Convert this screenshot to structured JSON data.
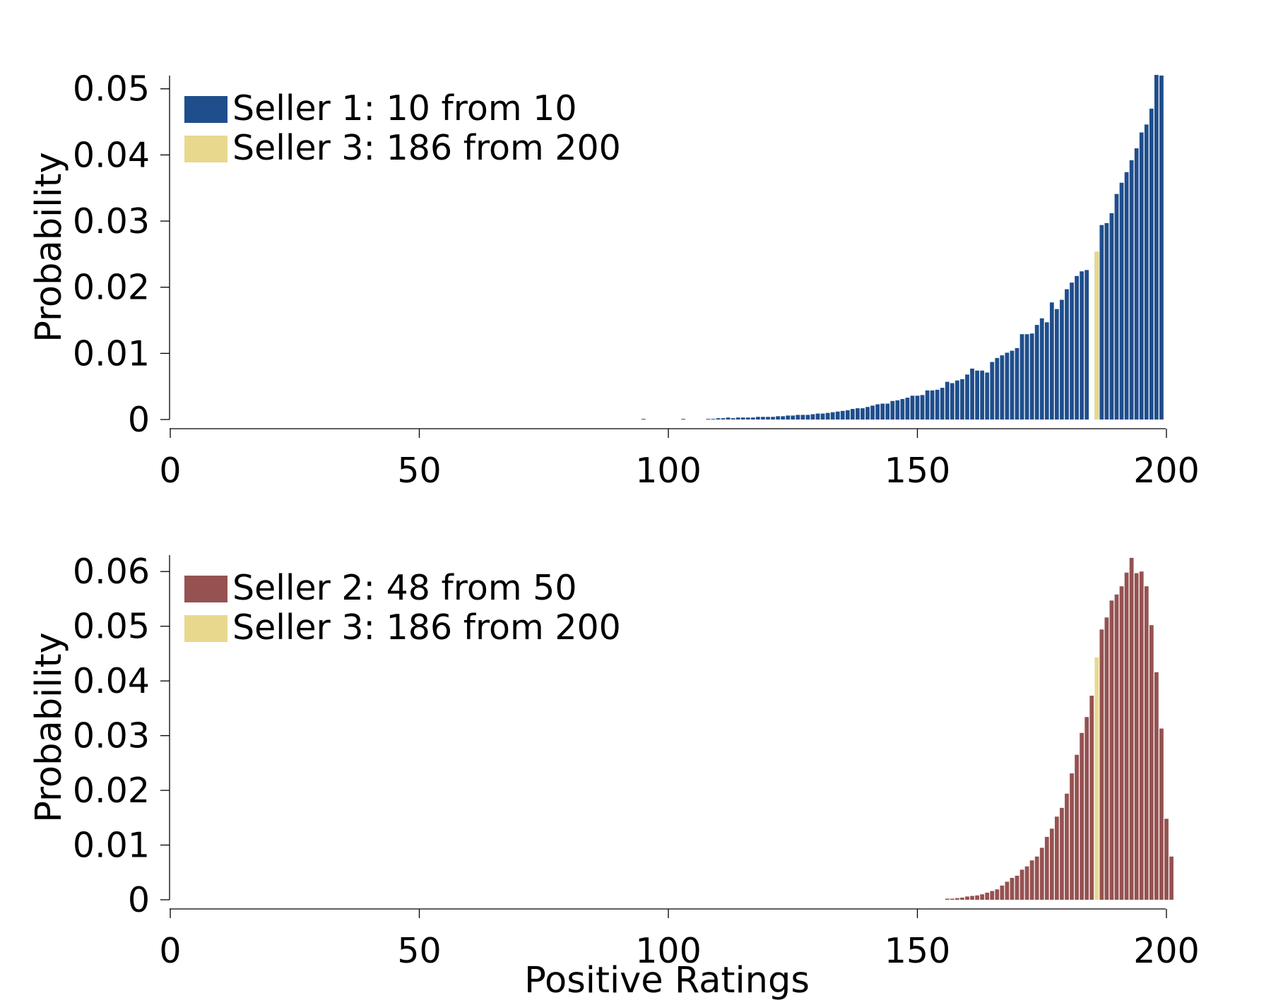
{
  "chart_data": [
    {
      "type": "bar",
      "xlabel": "",
      "ylabel": "Probability",
      "xlim": [
        0,
        200
      ],
      "ylim": [
        0,
        0.052
      ],
      "xticks": [
        "0",
        "50",
        "100",
        "150",
        "200"
      ],
      "yticks": [
        "0",
        "0.01",
        "0.02",
        "0.03",
        "0.04",
        "0.05"
      ],
      "legend_position": "upper-left",
      "grid": false,
      "series": [
        {
          "name": "Seller 1: 10 from 10",
          "color": "#1f4e8c",
          "x_start": 95,
          "values": [
            0.0001,
            0,
            0,
            0,
            0,
            0,
            0,
            0,
            0.0001,
            0,
            0,
            0,
            0,
            0.0001,
            0.0001,
            0.0002,
            0.0002,
            0.0003,
            0.0002,
            0.0003,
            0.0003,
            0.0003,
            0.0003,
            0.0004,
            0.0004,
            0.0004,
            0.0004,
            0.0005,
            0.0005,
            0.0006,
            0.0006,
            0.0007,
            0.0007,
            0.0007,
            0.0008,
            0.0009,
            0.0009,
            0.001,
            0.0011,
            0.0012,
            0.0013,
            0.0014,
            0.0016,
            0.0017,
            0.0017,
            0.0019,
            0.0021,
            0.0023,
            0.0024,
            0.0024,
            0.0028,
            0.0029,
            0.0031,
            0.0033,
            0.0036,
            0.0036,
            0.0037,
            0.0044,
            0.0044,
            0.0045,
            0.0048,
            0.0057,
            0.0055,
            0.0059,
            0.0061,
            0.0068,
            0.0077,
            0.0074,
            0.0074,
            0.0071,
            0.0087,
            0.0093,
            0.0097,
            0.0101,
            0.0104,
            0.0108,
            0.0129,
            0.0129,
            0.013,
            0.0143,
            0.0153,
            0.0147,
            0.0177,
            0.0167,
            0.0181,
            0.0197,
            0.0207,
            0.0217,
            0.0224,
            0.0226,
            0,
            0.0253,
            0.0294,
            0.0297,
            0.0312,
            0.0341,
            0.0358,
            0.0374,
            0.0392,
            0.041,
            0.0434,
            0.0446,
            0.047,
            0.0521,
            0.052
          ]
        },
        {
          "name": "Seller 3: 186 from 200",
          "color": "#e8d88e",
          "x": [
            186
          ],
          "values": [
            0.0254
          ]
        }
      ]
    },
    {
      "type": "bar",
      "xlabel": "Positive Ratings",
      "ylabel": "Probability",
      "xlim": [
        0,
        200
      ],
      "ylim": [
        0,
        0.063
      ],
      "xticks": [
        "0",
        "50",
        "100",
        "150",
        "200"
      ],
      "yticks": [
        "0",
        "0.01",
        "0.02",
        "0.03",
        "0.04",
        "0.05",
        "0.06"
      ],
      "legend_position": "upper-left",
      "grid": false,
      "series": [
        {
          "name": "Seller 2: 48 from 50",
          "color": "#955251",
          "x_start": 156,
          "values": [
            0.0002,
            0.0002,
            0.0003,
            0.0004,
            0.0006,
            0.0007,
            0.0008,
            0.001,
            0.0013,
            0.0016,
            0.0019,
            0.0026,
            0.0033,
            0.004,
            0.0044,
            0.0055,
            0.0061,
            0.0072,
            0.0079,
            0.0095,
            0.0115,
            0.013,
            0.0152,
            0.0168,
            0.0194,
            0.0231,
            0.0265,
            0.0305,
            0.0334,
            0.0373,
            0,
            0.0494,
            0.0516,
            0.0547,
            0.0558,
            0.0573,
            0.0598,
            0.0625,
            0.0597,
            0.06,
            0.0573,
            0.0502,
            0.0416,
            0.0313,
            0.0148,
            0.0079
          ]
        },
        {
          "name": "Seller 3: 186 from 200",
          "color": "#e8d88e",
          "x": [
            186
          ],
          "values": [
            0.0443
          ]
        }
      ]
    }
  ]
}
